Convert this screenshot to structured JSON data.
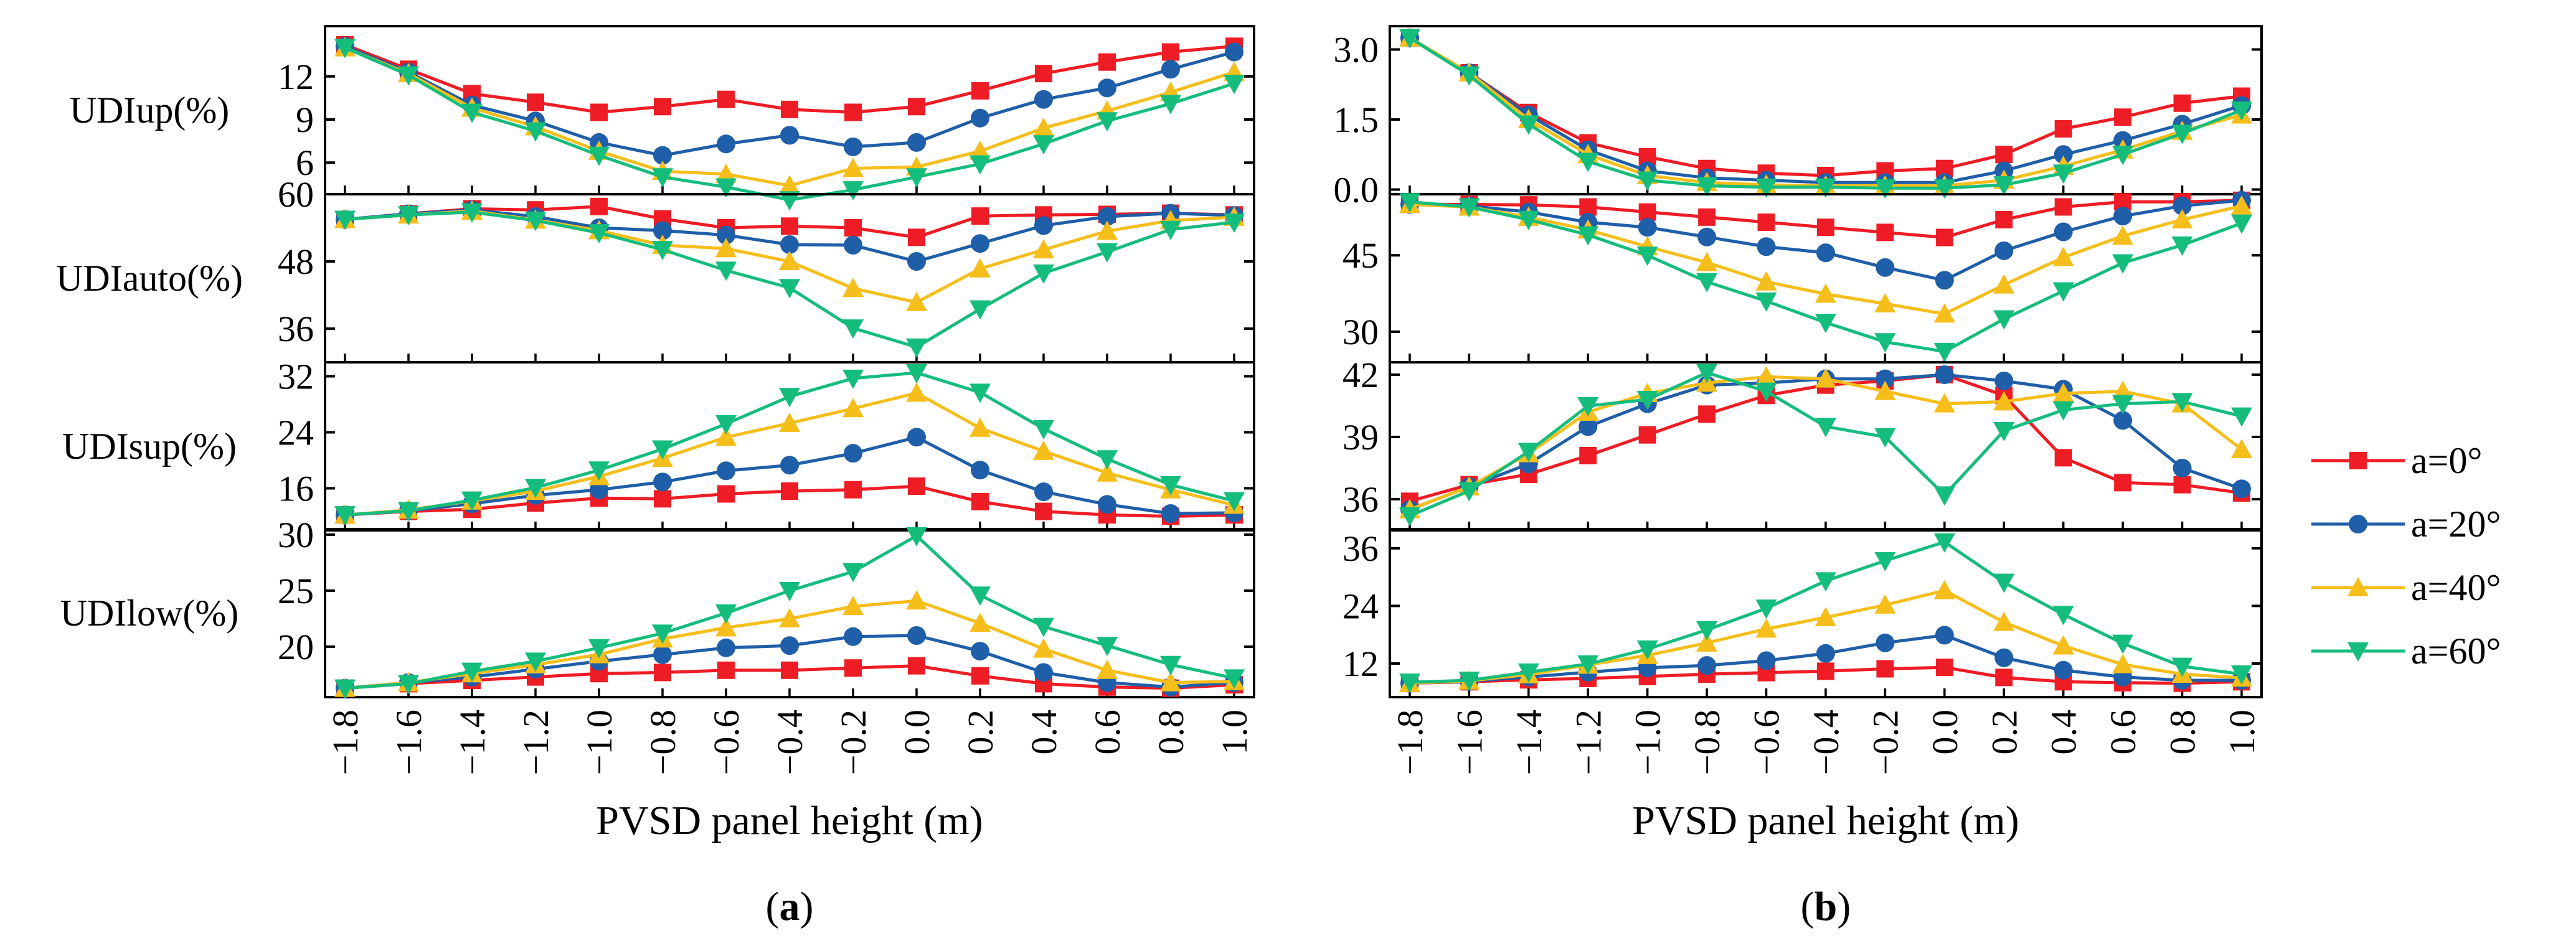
{
  "x": [
    -1.8,
    -1.6,
    -1.4,
    -1.2,
    -1.0,
    -0.8,
    -0.6,
    -0.4,
    -0.2,
    0.0,
    0.2,
    0.4,
    0.6,
    0.8,
    1.0
  ],
  "x_tick_labels": [
    "−1.8",
    "−1.6",
    "−1.4",
    "−1.2",
    "−1.0",
    "−0.8",
    "−0.6",
    "−0.4",
    "−0.2",
    "0.0",
    "0.2",
    "0.4",
    "0.6",
    "0.8",
    "1.0"
  ],
  "series_styles": [
    {
      "name": "a=0°",
      "color": "#ee1c25",
      "marker": "square"
    },
    {
      "name": "a=20°",
      "color": "#1f5ea8",
      "marker": "circle"
    },
    {
      "name": "a=40°",
      "color": "#f6be1a",
      "marker": "triangle-up"
    },
    {
      "name": "a=60°",
      "color": "#15bd7c",
      "marker": "triangle-down"
    }
  ],
  "legend": {
    "position": "right",
    "entries": [
      "a=0°",
      "a=20°",
      "a=40°",
      "a=60°"
    ]
  },
  "chart_data": [
    {
      "type": "line",
      "panel_label": "(a)",
      "xlabel": "PVSD panel height (m)",
      "subplots": [
        {
          "ylabel": "UDIup(%)",
          "ylim": [
            3.8,
            15.5
          ],
          "yticks": [
            6,
            9,
            12
          ],
          "ytick_labels": [
            "6",
            "9",
            "12"
          ],
          "series": [
            {
              "name": "a=0°",
              "values": [
                14.2,
                12.5,
                10.8,
                10.2,
                9.5,
                9.9,
                10.4,
                9.7,
                9.5,
                9.9,
                11.0,
                12.2,
                13.0,
                13.7,
                14.1
              ]
            },
            {
              "name": "a=20°",
              "values": [
                14.1,
                12.3,
                10.0,
                8.9,
                7.4,
                6.5,
                7.3,
                7.9,
                7.1,
                7.4,
                9.1,
                10.4,
                11.2,
                12.5,
                13.7
              ]
            },
            {
              "name": "a=40°",
              "values": [
                14.0,
                12.2,
                9.8,
                8.5,
                6.8,
                5.4,
                5.2,
                4.4,
                5.6,
                5.7,
                6.8,
                8.4,
                9.6,
                10.9,
                12.3
              ]
            },
            {
              "name": "a=60°",
              "values": [
                14.0,
                12.1,
                9.5,
                8.2,
                6.5,
                5.0,
                4.3,
                3.4,
                4.1,
                5.0,
                5.9,
                7.3,
                8.9,
                10.1,
                11.5
              ]
            }
          ]
        },
        {
          "ylabel": "UDIauto(%)",
          "ylim": [
            30,
            60
          ],
          "yticks": [
            36,
            48,
            60
          ],
          "ytick_labels": [
            "36",
            "48",
            "60"
          ],
          "series": [
            {
              "name": "a=0°",
              "values": [
                55.5,
                56.5,
                57.4,
                57.2,
                57.8,
                55.6,
                54.0,
                54.3,
                54.0,
                52.3,
                56.1,
                56.3,
                56.4,
                56.6,
                56.3
              ]
            },
            {
              "name": "a=20°",
              "values": [
                55.5,
                56.5,
                57.2,
                56.0,
                54.0,
                53.5,
                52.7,
                51.0,
                50.9,
                48.0,
                51.2,
                54.4,
                56.0,
                56.6,
                56.2
              ]
            },
            {
              "name": "a=40°",
              "values": [
                55.5,
                56.3,
                57.0,
                55.4,
                53.5,
                50.9,
                50.3,
                48.0,
                43.2,
                40.7,
                46.7,
                50.1,
                53.4,
                55.3,
                55.9
              ]
            },
            {
              "name": "a=60°",
              "values": [
                55.5,
                56.3,
                56.8,
                55.3,
                53.1,
                50.1,
                46.4,
                43.3,
                36.1,
                32.7,
                39.5,
                45.9,
                49.7,
                53.7,
                55.0
              ]
            }
          ]
        },
        {
          "ylabel": "UDIsup(%)",
          "ylim": [
            10,
            34
          ],
          "yticks": [
            16,
            24,
            32
          ],
          "ytick_labels": [
            "16",
            "24",
            "32"
          ],
          "series": [
            {
              "name": "a=0°",
              "values": [
                12.2,
                12.7,
                13.0,
                13.9,
                14.6,
                14.5,
                15.2,
                15.6,
                15.8,
                16.3,
                14.1,
                12.7,
                12.2,
                12.0,
                12.2
              ]
            },
            {
              "name": "a=20°",
              "values": [
                12.2,
                12.8,
                13.8,
                15.0,
                15.8,
                16.9,
                18.5,
                19.3,
                21.0,
                23.3,
                18.6,
                15.5,
                13.7,
                12.4,
                12.5
              ]
            },
            {
              "name": "a=40°",
              "values": [
                12.2,
                12.9,
                14.2,
                15.6,
                17.7,
                20.3,
                23.3,
                25.3,
                27.4,
                29.6,
                24.6,
                21.3,
                18.2,
                15.8,
                13.6
              ]
            },
            {
              "name": "a=60°",
              "values": [
                12.2,
                12.8,
                14.3,
                16.1,
                18.6,
                21.6,
                25.2,
                29.1,
                31.7,
                32.5,
                29.7,
                24.5,
                20.2,
                16.5,
                14.2
              ]
            }
          ]
        },
        {
          "ylabel": "UDIlow(%)",
          "ylim": [
            15.5,
            30.5
          ],
          "yticks": [
            20,
            25,
            30
          ],
          "ytick_labels": [
            "20",
            "25",
            "30"
          ],
          "series": [
            {
              "name": "a=0°",
              "values": [
                16.3,
                16.7,
                17.0,
                17.3,
                17.6,
                17.7,
                17.9,
                17.9,
                18.1,
                18.3,
                17.4,
                16.7,
                16.4,
                16.3,
                16.6
              ]
            },
            {
              "name": "a=20°",
              "values": [
                16.3,
                16.8,
                17.3,
                18.0,
                18.7,
                19.3,
                19.9,
                20.1,
                20.9,
                21.0,
                19.6,
                17.7,
                16.8,
                16.4,
                16.8
              ]
            },
            {
              "name": "a=40°",
              "values": [
                16.3,
                16.8,
                17.6,
                18.4,
                19.3,
                20.7,
                21.7,
                22.5,
                23.6,
                24.1,
                22.1,
                19.8,
                17.9,
                16.8,
                16.9
              ]
            },
            {
              "name": "a=60°",
              "values": [
                16.3,
                16.7,
                17.8,
                18.7,
                19.9,
                21.2,
                23.0,
                25.0,
                26.7,
                29.9,
                24.6,
                21.8,
                20.1,
                18.4,
                17.2
              ]
            }
          ]
        }
      ]
    },
    {
      "type": "line",
      "panel_label": "(b)",
      "xlabel": "PVSD panel height (m)",
      "subplots": [
        {
          "ylabel": "",
          "ylim": [
            -0.1,
            3.5
          ],
          "yticks": [
            0,
            1.5,
            3
          ],
          "ytick_labels": [
            "0.0",
            "1.5",
            "3.0"
          ],
          "series": [
            {
              "name": "a=0°",
              "values": [
                3.25,
                2.5,
                1.65,
                1.0,
                0.7,
                0.45,
                0.35,
                0.3,
                0.4,
                0.45,
                0.75,
                1.3,
                1.55,
                1.85,
                2.0
              ]
            },
            {
              "name": "a=20°",
              "values": [
                3.25,
                2.5,
                1.6,
                0.85,
                0.4,
                0.25,
                0.2,
                0.15,
                0.15,
                0.15,
                0.4,
                0.75,
                1.05,
                1.4,
                1.8
              ]
            },
            {
              "name": "a=40°",
              "values": [
                3.25,
                2.5,
                1.5,
                0.75,
                0.3,
                0.15,
                0.1,
                0.08,
                0.08,
                0.08,
                0.2,
                0.5,
                0.85,
                1.25,
                1.6
              ]
            },
            {
              "name": "a=60°",
              "values": [
                3.25,
                2.45,
                1.4,
                0.6,
                0.2,
                0.08,
                0.05,
                0.05,
                0.03,
                0.03,
                0.1,
                0.35,
                0.75,
                1.2,
                1.7
              ]
            }
          ]
        },
        {
          "ylabel": "",
          "ylim": [
            24,
            57
          ],
          "yticks": [
            30,
            45
          ],
          "ytick_labels": [
            "30",
            "45"
          ],
          "series": [
            {
              "name": "a=0°",
              "values": [
                55.0,
                55.0,
                54.9,
                54.5,
                53.5,
                52.5,
                51.5,
                50.5,
                49.5,
                48.5,
                52.0,
                54.5,
                55.5,
                55.5,
                55.8
              ]
            },
            {
              "name": "a=20°",
              "values": [
                55.0,
                54.7,
                53.5,
                51.5,
                50.5,
                48.6,
                46.7,
                45.5,
                42.6,
                40.1,
                45.9,
                49.6,
                52.7,
                54.7,
                55.8
              ]
            },
            {
              "name": "a=40°",
              "values": [
                55.0,
                54.5,
                52.5,
                50.0,
                46.7,
                43.6,
                39.8,
                37.4,
                35.5,
                33.5,
                39.2,
                44.6,
                48.8,
                52.0,
                54.7
              ]
            },
            {
              "name": "a=60°",
              "values": [
                55.5,
                54.5,
                52.0,
                49.0,
                45.0,
                39.8,
                36.0,
                31.8,
                28.0,
                26.1,
                32.5,
                38.0,
                43.5,
                47.0,
                51.3
              ]
            }
          ]
        },
        {
          "ylabel": "",
          "ylim": [
            34.5,
            42.6
          ],
          "yticks": [
            36,
            39,
            42
          ],
          "ytick_labels": [
            "36",
            "39",
            "42"
          ],
          "series": [
            {
              "name": "a=0°",
              "values": [
                35.9,
                36.7,
                37.2,
                38.1,
                39.1,
                40.1,
                41.0,
                41.5,
                41.7,
                42.0,
                41.0,
                38.0,
                36.8,
                36.7,
                36.3
              ]
            },
            {
              "name": "a=20°",
              "values": [
                35.5,
                36.6,
                37.7,
                39.5,
                40.6,
                41.5,
                41.6,
                41.8,
                41.8,
                42.0,
                41.7,
                41.3,
                39.8,
                37.5,
                36.5
              ]
            },
            {
              "name": "a=40°",
              "values": [
                35.5,
                36.6,
                38.2,
                40.2,
                41.1,
                41.6,
                41.9,
                41.8,
                41.2,
                40.6,
                40.7,
                41.1,
                41.2,
                40.6,
                38.4
              ]
            },
            {
              "name": "a=60°",
              "values": [
                35.2,
                36.4,
                38.3,
                40.5,
                40.8,
                42.1,
                41.2,
                39.5,
                39.0,
                36.2,
                39.3,
                40.3,
                40.6,
                40.7,
                40.0
              ]
            }
          ]
        },
        {
          "ylabel": "",
          "ylim": [
            5,
            40
          ],
          "yticks": [
            12,
            24,
            36
          ],
          "ytick_labels": [
            "12",
            "24",
            "36"
          ],
          "series": [
            {
              "name": "a=0°",
              "values": [
                7.9,
                8.2,
                8.6,
                8.9,
                9.3,
                9.8,
                10.1,
                10.4,
                10.9,
                11.2,
                9.1,
                8.2,
                8.0,
                7.9,
                8.2
              ]
            },
            {
              "name": "a=20°",
              "values": [
                7.9,
                8.3,
                9.2,
                10.2,
                11.1,
                11.6,
                12.6,
                14.1,
                16.3,
                17.9,
                13.2,
                10.6,
                9.2,
                8.5,
                8.5
              ]
            },
            {
              "name": "a=40°",
              "values": [
                7.9,
                8.4,
                9.7,
                11.7,
                13.7,
                16.3,
                19.2,
                21.6,
                24.2,
                27.2,
                20.6,
                15.7,
                11.8,
                9.8,
                9.0
              ]
            },
            {
              "name": "a=60°",
              "values": [
                8.1,
                8.5,
                10.2,
                11.9,
                15.0,
                19.0,
                23.5,
                29.2,
                33.4,
                37.3,
                28.9,
                22.2,
                16.2,
                11.4,
                9.8
              ]
            }
          ]
        }
      ]
    }
  ]
}
